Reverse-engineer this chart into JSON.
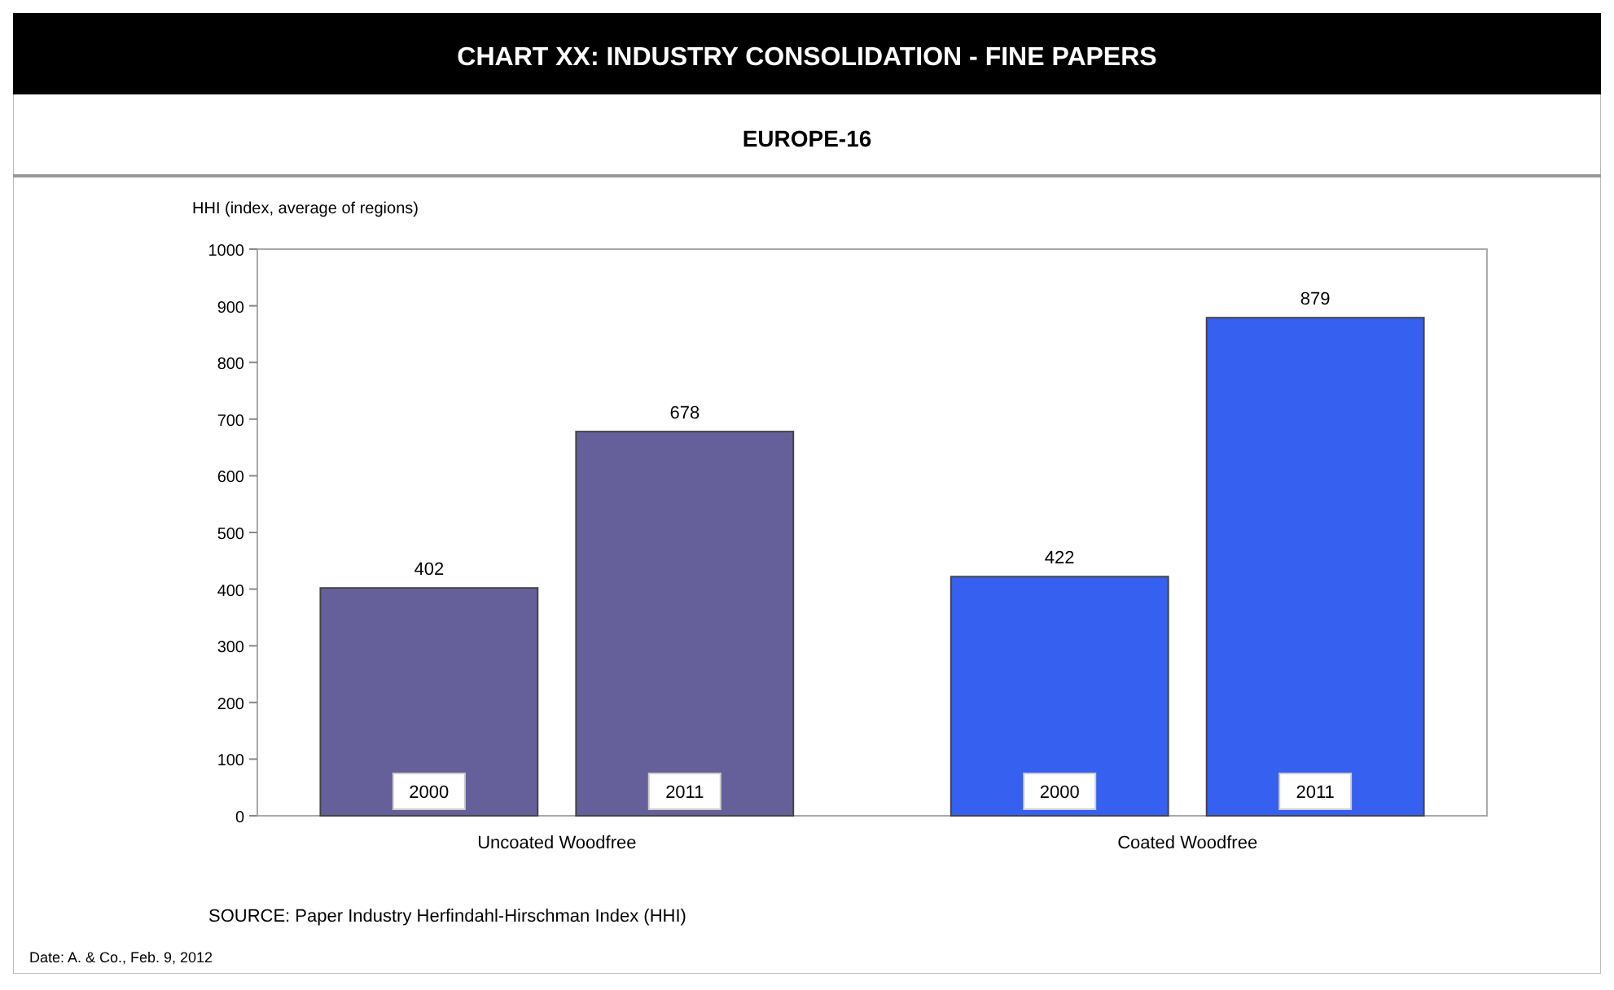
{
  "chart_data": {
    "type": "bar",
    "title": "CHART XX: INDUSTRY CONSOLIDATION - FINE PAPERS",
    "subtitle": "EUROPE-16",
    "ylabel": "HHI (index, average of regions)",
    "categories": [
      "Uncoated Woodfree",
      "Coated Woodfree"
    ],
    "series": [
      {
        "name": "2000",
        "colors": [
          "#66609a",
          "#3560f0"
        ],
        "values": [
          402,
          422
        ],
        "value_labels": [
          "402",
          "422"
        ]
      },
      {
        "name": "2011",
        "colors": [
          "#66609a",
          "#3560f0"
        ],
        "values": [
          678,
          879
        ],
        "value_labels": [
          "678",
          "879"
        ]
      }
    ],
    "ylim": [
      0,
      1000
    ],
    "yticks": [
      0,
      100,
      200,
      300,
      400,
      500,
      600,
      700,
      800,
      900,
      1000
    ],
    "grid": false,
    "annotations": [
      "SOURCE: Paper Industry Herfindahl-Hirschman Index (HHI)",
      "Date: A. & Co., Feb. 9, 2012"
    ]
  }
}
